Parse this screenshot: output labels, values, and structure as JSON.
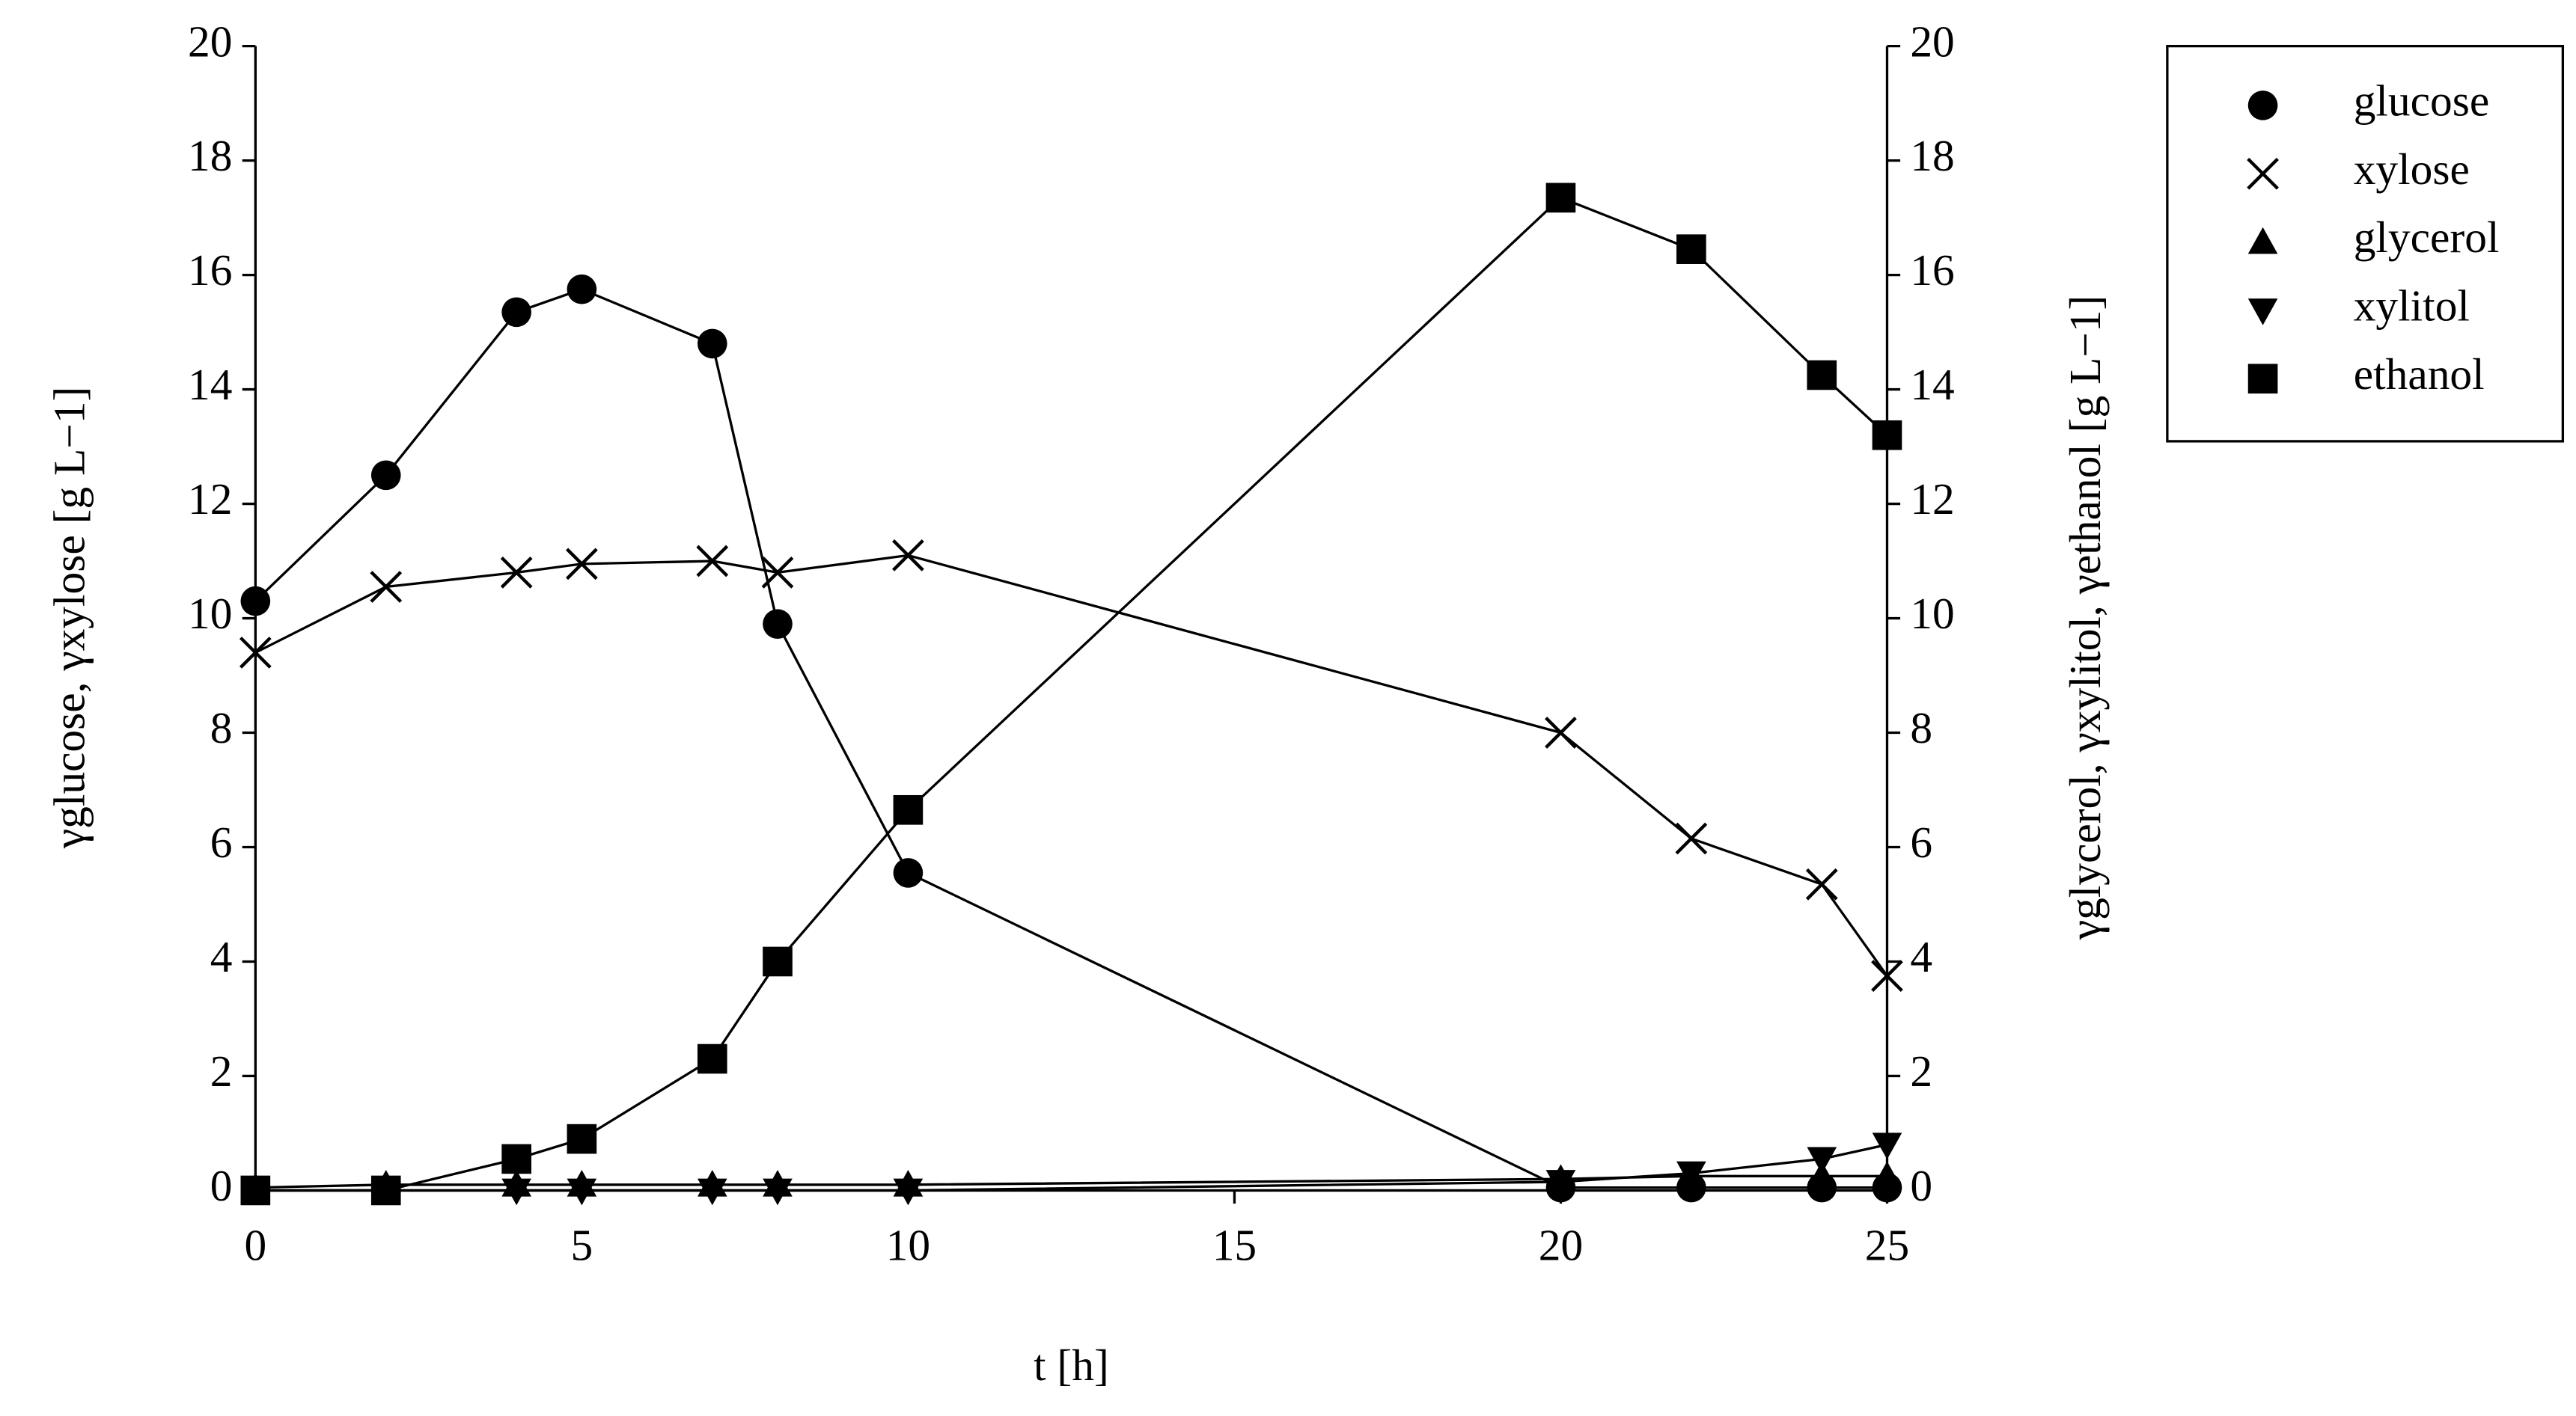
{
  "chart_data": {
    "type": "line",
    "x_label": "t [h]",
    "y_label": "γglucose, γxylose [g L−1]",
    "y2_label": "γglycerol, γxylitol, γethanol [g L−1]",
    "x": [
      0,
      2,
      4,
      5,
      7,
      8,
      10,
      20,
      22,
      24,
      25
    ],
    "series": [
      {
        "name": "glucose",
        "color": "#000000",
        "marker": "circle",
        "values": [
          10.3,
          12.5,
          15.35,
          15.75,
          14.8,
          9.9,
          5.55,
          0.05,
          0.05,
          0.05,
          0.05
        ]
      },
      {
        "name": "xylose",
        "color": "#000000",
        "marker": "x",
        "values": [
          9.4,
          10.55,
          10.8,
          10.95,
          11.0,
          10.8,
          11.1,
          8.0,
          6.15,
          5.35,
          3.75
        ]
      },
      {
        "name": "glycerol",
        "color": "#000000",
        "marker": "triangle-up",
        "axis": "y2",
        "values": [
          0.05,
          0.1,
          0.1,
          0.1,
          0.1,
          0.1,
          0.1,
          0.2,
          0.25,
          0.25,
          0.25
        ]
      },
      {
        "name": "xylitol",
        "color": "#000000",
        "marker": "triangle-down",
        "axis": "y2",
        "values": [
          0,
          0,
          0,
          0,
          0,
          0,
          0,
          0.15,
          0.3,
          0.55,
          0.8
        ]
      },
      {
        "name": "ethanol",
        "color": "#000000",
        "marker": "square",
        "axis": "y2",
        "values": [
          0,
          0,
          0.55,
          0.9,
          2.3,
          4.0,
          6.65,
          17.35,
          16.45,
          14.25,
          13.2
        ]
      }
    ],
    "xlim": [
      0,
      25
    ],
    "xticks": [
      0,
      5,
      10,
      15,
      20,
      25
    ],
    "ylim": [
      0,
      20
    ],
    "yticks": [
      0,
      2,
      4,
      6,
      8,
      10,
      12,
      14,
      16,
      18,
      20
    ],
    "y2lim": [
      0,
      20
    ],
    "y2ticks": [
      0,
      2,
      4,
      6,
      8,
      10,
      12,
      14,
      16,
      18,
      20
    ],
    "grid": false,
    "legend": "outside-top-right"
  }
}
